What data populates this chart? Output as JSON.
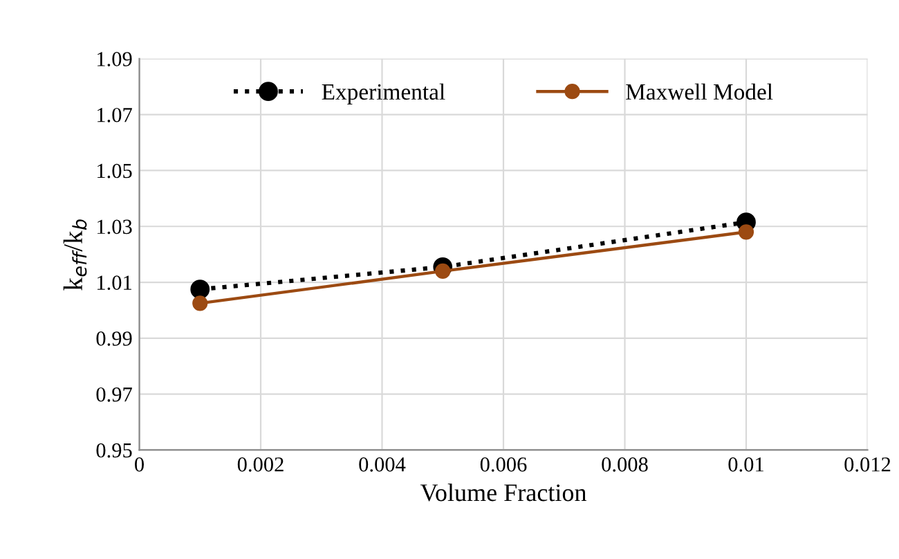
{
  "chart_data": {
    "type": "line",
    "xlabel": "Volume Fraction",
    "ylabel": "k$_{eff}$/k$_{b}$",
    "x": [
      0.001,
      0.005,
      0.01
    ],
    "series": [
      {
        "name": "Experimental",
        "color": "#000000",
        "values": [
          1.0075,
          1.0155,
          1.0315
        ],
        "line_style": "dotted",
        "marker": "circle"
      },
      {
        "name": "Maxwell Model",
        "color": "#9c4a12",
        "values": [
          1.0025,
          1.014,
          1.028
        ],
        "line_style": "solid",
        "marker": "circle"
      }
    ],
    "xlim": [
      0,
      0.012
    ],
    "xticks": [
      0,
      0.002,
      0.004,
      0.006,
      0.008,
      0.01,
      0.012
    ],
    "ylim": [
      0.95,
      1.09
    ],
    "yticks": [
      0.95,
      0.97,
      0.99,
      1.01,
      1.03,
      1.05,
      1.07,
      1.09
    ],
    "grid": true,
    "legend": "top"
  }
}
